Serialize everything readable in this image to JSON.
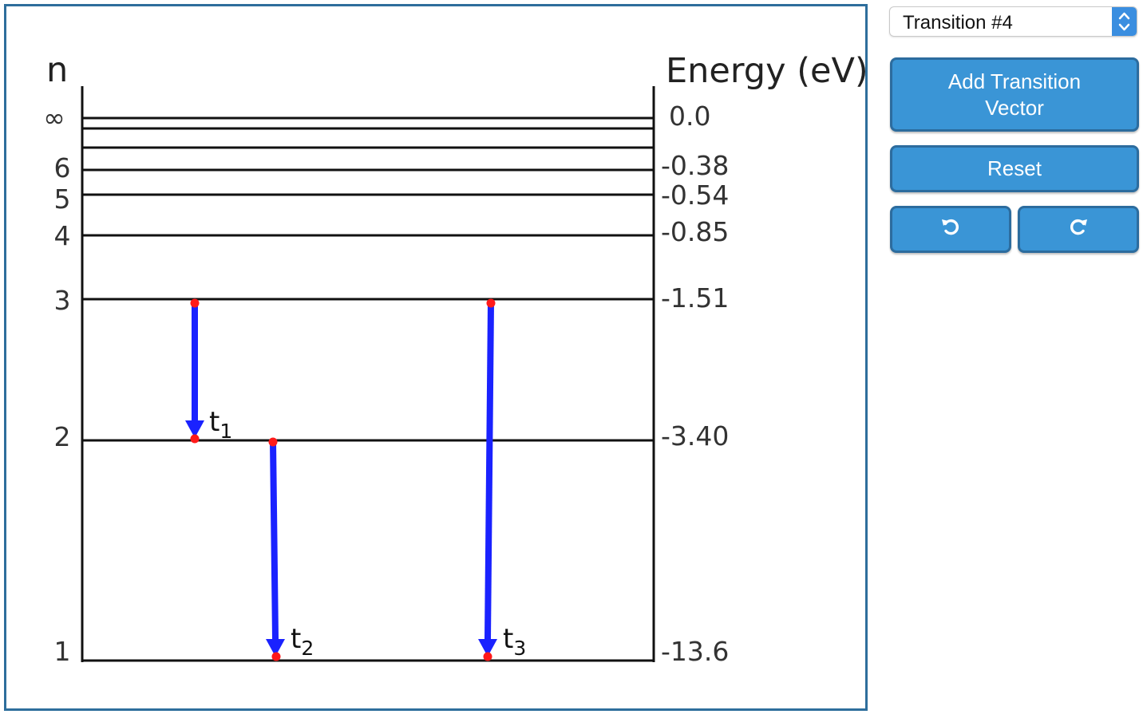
{
  "selector": {
    "value": "Transition #4"
  },
  "buttons": {
    "add": "Add Transition Vector",
    "reset": "Reset",
    "undo_icon": "undo-icon",
    "redo_icon": "redo-icon"
  },
  "diagram": {
    "n_header": "n",
    "energy_header": "Energy (eV)",
    "levels": [
      {
        "n": "∞",
        "energy": "0.0"
      },
      {
        "n": "",
        "energy": ""
      },
      {
        "n": "",
        "energy": ""
      },
      {
        "n": "6",
        "energy": "-0.38"
      },
      {
        "n": "5",
        "energy": "-0.54"
      },
      {
        "n": "4",
        "energy": "-0.85"
      },
      {
        "n": "3",
        "energy": "-1.51"
      },
      {
        "n": "2",
        "energy": "-3.40"
      },
      {
        "n": "1",
        "energy": "-13.6"
      }
    ],
    "transitions": [
      {
        "label": "t",
        "sub": "1",
        "from_n": 3,
        "to_n": 2
      },
      {
        "label": "t",
        "sub": "2",
        "from_n": 2,
        "to_n": 1
      },
      {
        "label": "t",
        "sub": "3",
        "from_n": 3,
        "to_n": 1
      }
    ],
    "colors": {
      "arrow": "#1a22ff",
      "endpoint": "#ff1a1a",
      "line": "#111111",
      "frame": "#2e6e9c",
      "button": "#3a95d6"
    }
  }
}
